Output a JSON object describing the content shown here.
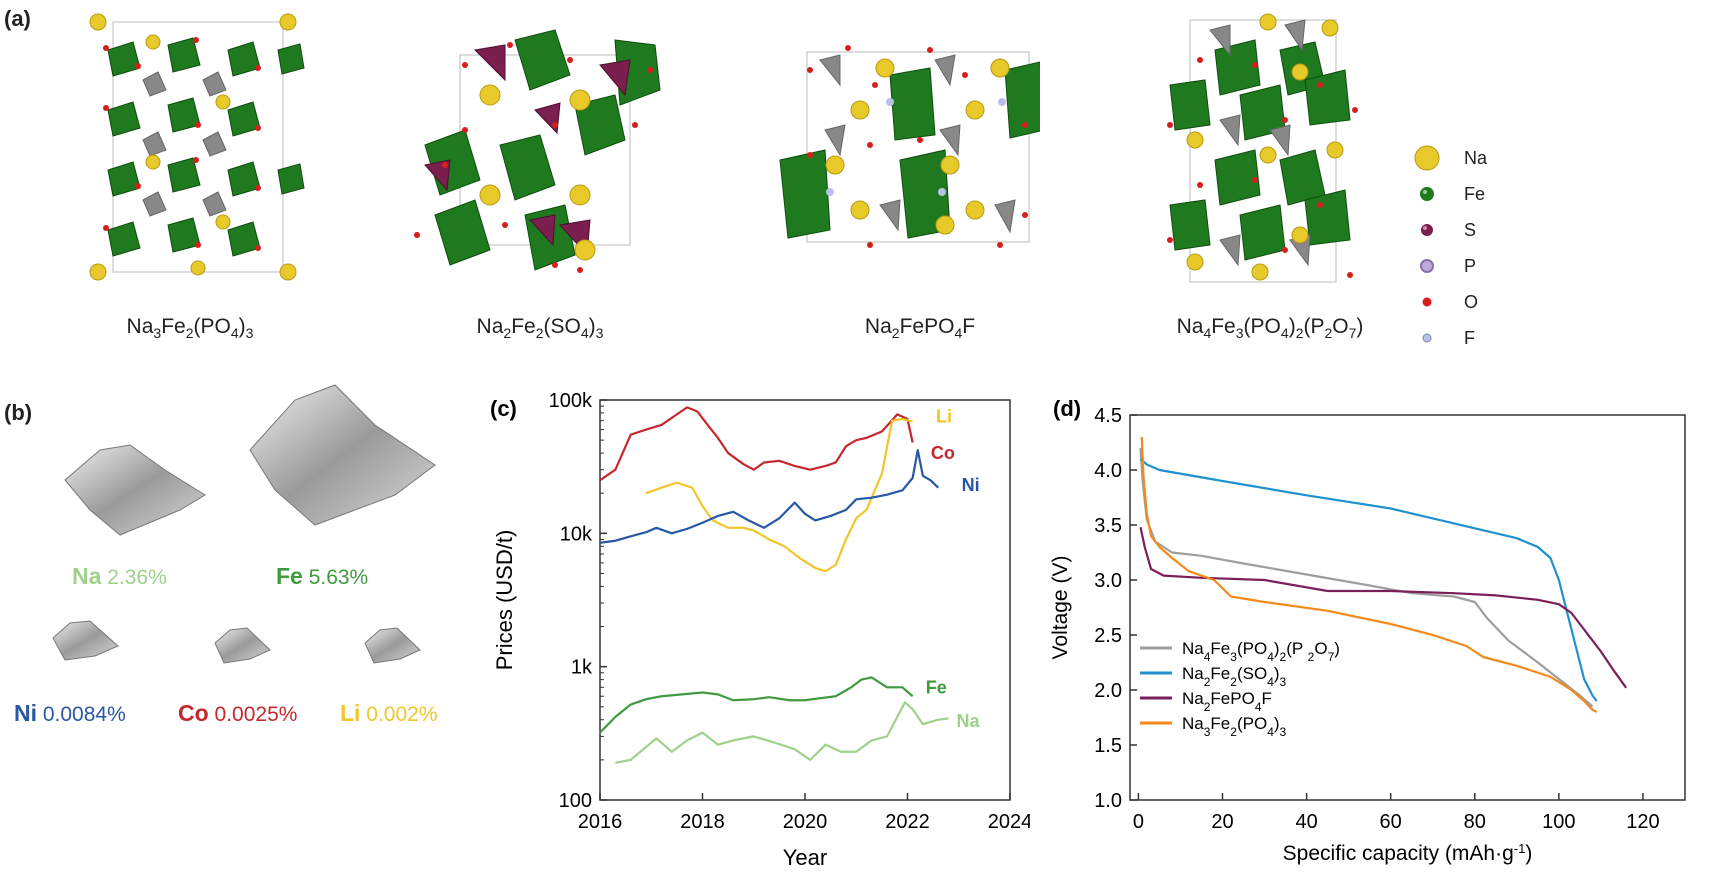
{
  "panel_a": {
    "letter": "(a)",
    "structures": [
      {
        "formula_html": "Na<sub>3</sub>Fe<sub>2</sub>(PO<sub>4</sub>)<sub>3</sub>"
      },
      {
        "formula_html": "Na<sub>2</sub>Fe<sub>2</sub>(SO<sub>4</sub>)<sub>3</sub>"
      },
      {
        "formula_html": "Na<sub>2</sub>FePO<sub>4</sub>F"
      },
      {
        "formula_html": "Na<sub>4</sub>Fe<sub>3</sub>(PO<sub>4</sub>)<sub>2</sub>(P<sub>2</sub>O<sub>7</sub>)"
      }
    ],
    "legend": [
      {
        "label": "Na",
        "color": "#e8c92a"
      },
      {
        "label": "Fe",
        "color": "#1f7a1f"
      },
      {
        "label": "S",
        "color": "#7a1f4e"
      },
      {
        "label": "P",
        "color": "#c0a8d8"
      },
      {
        "label": "O",
        "color": "#d81d1d"
      },
      {
        "label": "F",
        "color": "#b8c0e8"
      }
    ]
  },
  "panel_b": {
    "letter": "(b)",
    "minerals": [
      {
        "element": "Na",
        "percent": "2.36%",
        "color": "#9ed18a"
      },
      {
        "element": "Fe",
        "percent": "5.63%",
        "color": "#3f9b3f"
      },
      {
        "element": "Ni",
        "percent": "0.0084%",
        "color": "#2857a4"
      },
      {
        "element": "Co",
        "percent": "0.0025%",
        "color": "#c8262e"
      },
      {
        "element": "Li",
        "percent": "0.002%",
        "color": "#f2c62a"
      }
    ]
  },
  "chart_data": [
    {
      "panel": "(c)",
      "type": "line",
      "xlabel": "Year",
      "ylabel": "Prices (USD/t)",
      "yscale": "log",
      "xlim": [
        2016,
        2024
      ],
      "ylim": [
        100,
        100000
      ],
      "xticks": [
        "2016",
        "2018",
        "2020",
        "2022",
        "2024"
      ],
      "yticks": [
        "100",
        "1k",
        "10k",
        "100k"
      ],
      "series": [
        {
          "name": "Co",
          "color": "#c8262e",
          "x": [
            2016.0,
            2016.3,
            2016.6,
            2016.9,
            2017.2,
            2017.5,
            2017.7,
            2017.9,
            2018.1,
            2018.3,
            2018.5,
            2018.8,
            2019.0,
            2019.2,
            2019.5,
            2019.8,
            2020.1,
            2020.4,
            2020.6,
            2020.8,
            2021.0,
            2021.2,
            2021.5,
            2021.8,
            2022.0,
            2022.1
          ],
          "y": [
            25000,
            30000,
            55000,
            60000,
            65000,
            78000,
            88000,
            82000,
            65000,
            52000,
            40000,
            33000,
            30000,
            34000,
            35000,
            32000,
            30000,
            32000,
            34000,
            45000,
            50000,
            52000,
            58000,
            78000,
            72000,
            48000
          ]
        },
        {
          "name": "Li",
          "color": "#f2c62a",
          "x": [
            2016.9,
            2017.2,
            2017.5,
            2017.8,
            2018.0,
            2018.2,
            2018.5,
            2018.8,
            2019.0,
            2019.3,
            2019.6,
            2019.9,
            2020.2,
            2020.4,
            2020.6,
            2020.8,
            2021.0,
            2021.2,
            2021.5,
            2021.7,
            2021.9,
            2022.1
          ],
          "y": [
            20000,
            22000,
            24000,
            22000,
            16000,
            12500,
            11000,
            11000,
            10500,
            9000,
            8000,
            6500,
            5500,
            5200,
            5800,
            9000,
            13000,
            15000,
            28000,
            70000,
            72000,
            69000
          ]
        },
        {
          "name": "Ni",
          "color": "#2857a4",
          "x": [
            2016.0,
            2016.3,
            2016.6,
            2016.9,
            2017.1,
            2017.4,
            2017.7,
            2018.0,
            2018.3,
            2018.6,
            2018.9,
            2019.2,
            2019.5,
            2019.8,
            2020.0,
            2020.2,
            2020.5,
            2020.8,
            2021.0,
            2021.3,
            2021.6,
            2021.9,
            2022.1,
            2022.2,
            2022.3,
            2022.45,
            2022.6
          ],
          "y": [
            8500,
            8800,
            9500,
            10200,
            11000,
            10000,
            10800,
            12000,
            13500,
            14500,
            12500,
            11000,
            13000,
            17000,
            14000,
            12500,
            13500,
            15000,
            18000,
            18500,
            19500,
            21000,
            26000,
            42000,
            27000,
            25000,
            22000
          ]
        },
        {
          "name": "Fe",
          "color": "#3f9b3f",
          "x": [
            2016.0,
            2016.3,
            2016.6,
            2016.9,
            2017.2,
            2017.6,
            2018.0,
            2018.3,
            2018.6,
            2019.0,
            2019.3,
            2019.7,
            2020.0,
            2020.3,
            2020.6,
            2020.9,
            2021.1,
            2021.3,
            2021.6,
            2021.9,
            2022.1
          ],
          "y": [
            320,
            420,
            520,
            570,
            600,
            620,
            640,
            620,
            560,
            570,
            590,
            560,
            560,
            580,
            600,
            700,
            800,
            830,
            700,
            700,
            600
          ]
        },
        {
          "name": "Na",
          "color": "#9ed18a",
          "x": [
            2016.3,
            2016.6,
            2016.9,
            2017.1,
            2017.4,
            2017.7,
            2018.0,
            2018.3,
            2018.6,
            2019.0,
            2019.4,
            2019.8,
            2020.1,
            2020.4,
            2020.7,
            2021.0,
            2021.3,
            2021.6,
            2021.8,
            2021.95,
            2022.1,
            2022.3,
            2022.6,
            2022.8
          ],
          "y": [
            190,
            200,
            250,
            290,
            230,
            280,
            320,
            260,
            280,
            300,
            270,
            240,
            200,
            260,
            230,
            230,
            280,
            300,
            420,
            540,
            480,
            370,
            400,
            410
          ]
        }
      ]
    },
    {
      "panel": "(d)",
      "type": "line",
      "xlabel": "Specific capacity (mAh·g⁻¹)",
      "ylabel": "Voltage (V)",
      "xlim": [
        -2,
        130
      ],
      "ylim": [
        1.0,
        4.5
      ],
      "xticks": [
        "0",
        "20",
        "40",
        "60",
        "80",
        "100",
        "120"
      ],
      "yticks": [
        "1.0",
        "1.5",
        "2.0",
        "2.5",
        "3.0",
        "3.5",
        "4.0",
        "4.5"
      ],
      "series": [
        {
          "name": "Na₄Fe₃(PO₄)₂(P ₂O₇)",
          "name_html": "Na<tspan baseline-shift='sub' font-size='12'>4</tspan>Fe<tspan baseline-shift='sub' font-size='12'>3</tspan>(PO<tspan baseline-shift='sub' font-size='12'>4</tspan>)<tspan baseline-shift='sub' font-size='12'>2</tspan>(P <tspan baseline-shift='sub' font-size='12'>2</tspan>O<tspan baseline-shift='sub' font-size='12'>7</tspan>)",
          "color": "#9e9e9e",
          "x": [
            0.5,
            1,
            2,
            4,
            8,
            15,
            25,
            40,
            55,
            65,
            75,
            80,
            83,
            88,
            95,
            100,
            105,
            108
          ],
          "y": [
            4.2,
            3.9,
            3.55,
            3.35,
            3.25,
            3.22,
            3.15,
            3.05,
            2.95,
            2.88,
            2.85,
            2.8,
            2.65,
            2.45,
            2.25,
            2.1,
            1.95,
            1.85
          ]
        },
        {
          "name": "Na₂Fe₂(SO₄)₃",
          "name_html": "Na<tspan baseline-shift='sub' font-size='12'>2</tspan>Fe<tspan baseline-shift='sub' font-size='12'>2</tspan>(SO<tspan baseline-shift='sub' font-size='12'>4</tspan>)<tspan baseline-shift='sub' font-size='12'>3</tspan>",
          "color": "#2190cf",
          "x": [
            0.5,
            2,
            5,
            20,
            40,
            60,
            80,
            90,
            95,
            98,
            100,
            102,
            104,
            106,
            108,
            109
          ],
          "y": [
            4.1,
            4.05,
            4.0,
            3.9,
            3.77,
            3.65,
            3.47,
            3.38,
            3.3,
            3.2,
            3.0,
            2.7,
            2.4,
            2.1,
            1.95,
            1.9
          ]
        },
        {
          "name": "Na₂FePO₄F",
          "name_html": "Na<tspan baseline-shift='sub' font-size='12'>2</tspan>FePO<tspan baseline-shift='sub' font-size='12'>4</tspan>F",
          "color": "#7a1f5a",
          "x": [
            0.5,
            1.5,
            3,
            6,
            15,
            30,
            45,
            60,
            75,
            85,
            95,
            100,
            103,
            106,
            110,
            113,
            116
          ],
          "y": [
            3.48,
            3.3,
            3.1,
            3.04,
            3.02,
            3.0,
            2.9,
            2.9,
            2.88,
            2.86,
            2.82,
            2.78,
            2.7,
            2.55,
            2.35,
            2.18,
            2.02
          ]
        },
        {
          "name": "Na₃Fe₂(PO₄)₃",
          "name_html": "Na<tspan baseline-shift='sub' font-size='12'>3</tspan>Fe<tspan baseline-shift='sub' font-size='12'>2</tspan>(PO<tspan baseline-shift='sub' font-size='12'>4</tspan>)<tspan baseline-shift='sub' font-size='12'>3</tspan>",
          "color": "#f28a1c",
          "x": [
            0.8,
            1.2,
            2,
            3,
            5,
            8,
            12,
            18,
            22,
            30,
            45,
            60,
            70,
            78,
            82,
            90,
            98,
            103,
            106,
            108,
            109
          ],
          "y": [
            4.3,
            3.95,
            3.6,
            3.4,
            3.3,
            3.2,
            3.08,
            3.0,
            2.85,
            2.8,
            2.72,
            2.6,
            2.5,
            2.4,
            2.3,
            2.22,
            2.12,
            2.0,
            1.9,
            1.82,
            1.8
          ]
        }
      ]
    }
  ]
}
